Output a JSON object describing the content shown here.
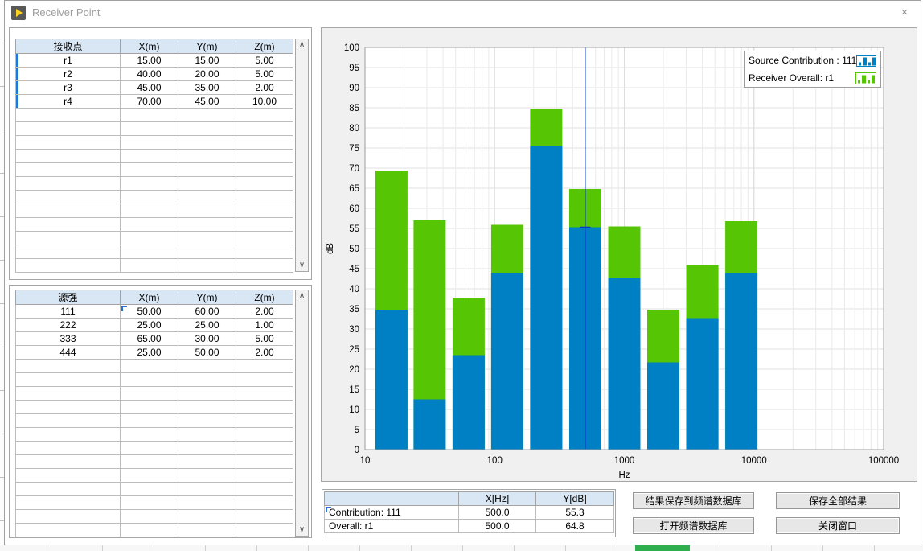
{
  "window": {
    "title": "Receiver Point"
  },
  "icons": {
    "close": "×",
    "scroll_up": "∧",
    "scroll_down": "∨"
  },
  "receiver_table": {
    "headers": [
      "接收点",
      "X(m)",
      "Y(m)",
      "Z(m)"
    ],
    "rows": [
      [
        "r1",
        "15.00",
        "15.00",
        "5.00"
      ],
      [
        "r2",
        "40.00",
        "20.00",
        "5.00"
      ],
      [
        "r3",
        "45.00",
        "35.00",
        "2.00"
      ],
      [
        "r4",
        "70.00",
        "45.00",
        "10.00"
      ]
    ]
  },
  "source_table": {
    "headers": [
      "源强",
      "X(m)",
      "Y(m)",
      "Z(m)"
    ],
    "rows": [
      [
        "111",
        "50.00",
        "60.00",
        "2.00"
      ],
      [
        "222",
        "25.00",
        "25.00",
        "1.00"
      ],
      [
        "333",
        "65.00",
        "30.00",
        "5.00"
      ],
      [
        "444",
        "25.00",
        "50.00",
        "2.00"
      ]
    ]
  },
  "readout_table": {
    "headers": [
      "",
      "X[Hz]",
      "Y[dB]"
    ],
    "rows": [
      [
        "Contribution: 111",
        "500.0",
        "55.3"
      ],
      [
        "Overall: r1",
        "500.0",
        "64.8"
      ]
    ]
  },
  "buttons": {
    "save_to_db": "结果保存到频谱数据库",
    "save_all": "保存全部结果",
    "open_db": "打开频谱数据库",
    "close_window": "关闭窗口"
  },
  "chart_data": {
    "type": "bar",
    "x_scale": "log",
    "xlabel": "Hz",
    "ylabel": "dB",
    "xlim": [
      10,
      100000
    ],
    "ylim": [
      0,
      100
    ],
    "ytick_step": 5,
    "xticks": [
      10,
      100,
      1000,
      10000,
      100000
    ],
    "grid": true,
    "legend_position": "top-right",
    "categories_hz": [
      16,
      31.5,
      63,
      125,
      250,
      500,
      1000,
      2000,
      4000,
      8000
    ],
    "series": [
      {
        "name": "Source Contribution : 111",
        "color": "#0080c4",
        "values": [
          34.6,
          12.5,
          23.5,
          44.0,
          75.5,
          55.3,
          42.7,
          21.7,
          32.7,
          43.9
        ]
      },
      {
        "name": "Receiver Overall: r1",
        "color": "#55c504",
        "values": [
          69.4,
          57.0,
          37.8,
          55.9,
          84.7,
          64.8,
          55.5,
          34.8,
          45.9,
          56.8
        ]
      }
    ],
    "cursor": {
      "x_hz": 500,
      "y_db": 55.3,
      "color": "#0433cc"
    }
  }
}
